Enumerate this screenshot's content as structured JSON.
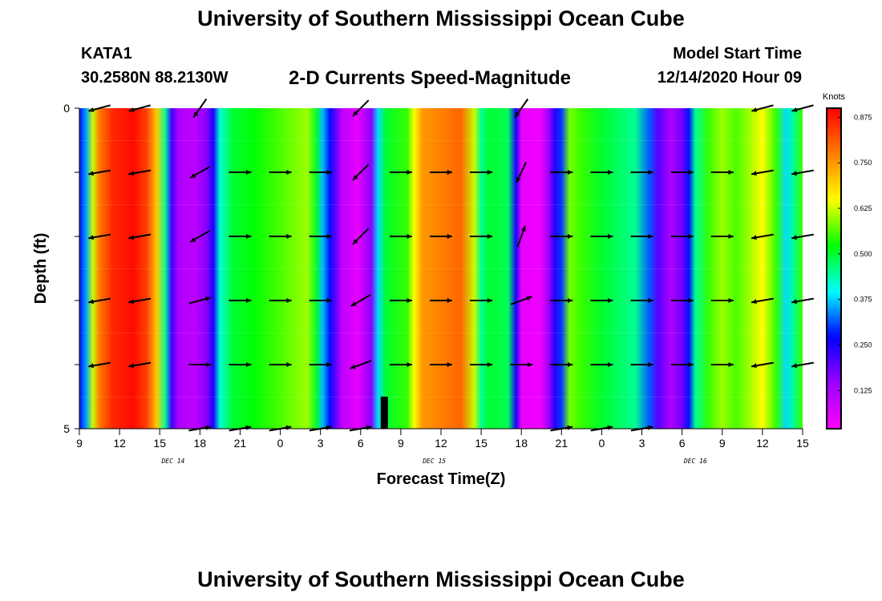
{
  "page": {
    "title": "University of Southern Mississippi Ocean Cube",
    "footer_title": "University of Southern Mississippi Ocean Cube",
    "station": "KATA1",
    "coords": "30.2580N 88.2130W",
    "chart_title": "2-D Currents Speed-Magnitude",
    "start_label": "Model Start Time",
    "start_value": "12/14/2020 Hour 09"
  },
  "chart_data": {
    "type": "heatmap",
    "title": "2-D Currents Speed-Magnitude",
    "xlabel": "Forecast Time(Z)",
    "ylabel": "Depth (ft)",
    "x_ticks": [
      "9",
      "12",
      "15",
      "18",
      "21",
      "0",
      "3",
      "6",
      "9",
      "12",
      "15",
      "18",
      "21",
      "0",
      "3",
      "6",
      "9",
      "12",
      "15"
    ],
    "x_hours": [
      0,
      3,
      6,
      9,
      12,
      15,
      18,
      21,
      24,
      27,
      30,
      33,
      36,
      39,
      42,
      45,
      48,
      51,
      54
    ],
    "day_labels": [
      {
        "hour": 7,
        "label": "DEC 14"
      },
      {
        "hour": 26.5,
        "label": "DEC 15"
      },
      {
        "hour": 46,
        "label": "DEC 16"
      }
    ],
    "y_ticks": [
      "0",
      "5"
    ],
    "ylim": [
      0,
      5
    ],
    "colorbar": {
      "unit": "Knots",
      "ticks": [
        "0.875",
        "0.750",
        "0.625",
        "0.500",
        "0.375",
        "0.250",
        "0.125"
      ],
      "tick_values": [
        0.875,
        0.75,
        0.625,
        0.5,
        0.375,
        0.25,
        0.125
      ],
      "range": [
        0.02,
        0.9
      ],
      "colors": [
        "#ff00ff",
        "#9900ff",
        "#0000ff",
        "#00ffff",
        "#00ff00",
        "#ffff00",
        "#ff7f00",
        "#ff0000"
      ]
    },
    "speed_by_hour": [
      {
        "hour": 0,
        "speed": 0.28
      },
      {
        "hour": 0.5,
        "speed": 0.35
      },
      {
        "hour": 1,
        "speed": 0.62
      },
      {
        "hour": 1.5,
        "speed": 0.78
      },
      {
        "hour": 2.5,
        "speed": 0.86
      },
      {
        "hour": 4,
        "speed": 0.89
      },
      {
        "hour": 5,
        "speed": 0.84
      },
      {
        "hour": 5.8,
        "speed": 0.7
      },
      {
        "hour": 6.4,
        "speed": 0.45
      },
      {
        "hour": 6.9,
        "speed": 0.22
      },
      {
        "hour": 7.4,
        "speed": 0.12
      },
      {
        "hour": 8.6,
        "speed": 0.1
      },
      {
        "hour": 9.5,
        "speed": 0.16
      },
      {
        "hour": 10,
        "speed": 0.25
      },
      {
        "hour": 10.5,
        "speed": 0.42
      },
      {
        "hour": 11.5,
        "speed": 0.5
      },
      {
        "hour": 13,
        "speed": 0.52
      },
      {
        "hour": 14.5,
        "speed": 0.55
      },
      {
        "hour": 16,
        "speed": 0.58
      },
      {
        "hour": 17,
        "speed": 0.6
      },
      {
        "hour": 17.7,
        "speed": 0.5
      },
      {
        "hour": 18.2,
        "speed": 0.36
      },
      {
        "hour": 18.7,
        "speed": 0.28
      },
      {
        "hour": 19.1,
        "speed": 0.2
      },
      {
        "hour": 19.6,
        "speed": 0.1
      },
      {
        "hour": 20.8,
        "speed": 0.05
      },
      {
        "hour": 21.8,
        "speed": 0.16
      },
      {
        "hour": 22.3,
        "speed": 0.38
      },
      {
        "hour": 22.9,
        "speed": 0.5
      },
      {
        "hour": 24.5,
        "speed": 0.55
      },
      {
        "hour": 25,
        "speed": 0.65
      },
      {
        "hour": 25.6,
        "speed": 0.75
      },
      {
        "hour": 28.5,
        "speed": 0.8
      },
      {
        "hour": 29.5,
        "speed": 0.62
      },
      {
        "hour": 30,
        "speed": 0.45
      },
      {
        "hour": 30.6,
        "speed": 0.5
      },
      {
        "hour": 32,
        "speed": 0.48
      },
      {
        "hour": 32.6,
        "speed": 0.25
      },
      {
        "hour": 33,
        "speed": 0.05
      },
      {
        "hour": 34.4,
        "speed": 0.04
      },
      {
        "hour": 35,
        "speed": 0.13
      },
      {
        "hour": 35.5,
        "speed": 0.24
      },
      {
        "hour": 36,
        "speed": 0.3
      },
      {
        "hour": 36.6,
        "speed": 0.58
      },
      {
        "hour": 37.5,
        "speed": 0.55
      },
      {
        "hour": 39,
        "speed": 0.5
      },
      {
        "hour": 41.5,
        "speed": 0.45
      },
      {
        "hour": 42.5,
        "speed": 0.32
      },
      {
        "hour": 43.2,
        "speed": 0.2
      },
      {
        "hour": 44.2,
        "speed": 0.12
      },
      {
        "hour": 45,
        "speed": 0.18
      },
      {
        "hour": 45.5,
        "speed": 0.28
      },
      {
        "hour": 46,
        "speed": 0.45
      },
      {
        "hour": 47,
        "speed": 0.55
      },
      {
        "hour": 48,
        "speed": 0.6
      },
      {
        "hour": 49,
        "speed": 0.56
      },
      {
        "hour": 50,
        "speed": 0.6
      },
      {
        "hour": 51,
        "speed": 0.65
      },
      {
        "hour": 52,
        "speed": 0.55
      },
      {
        "hour": 52.8,
        "speed": 0.38
      },
      {
        "hour": 53.3,
        "speed": 0.45
      },
      {
        "hour": 54,
        "speed": 0.55
      }
    ],
    "arrow_hours": [
      1.5,
      4.5,
      9,
      12,
      15,
      18,
      21,
      24,
      27,
      30,
      33,
      36,
      39,
      42,
      45,
      48,
      51,
      54
    ],
    "arrow_depths": [
      0,
      1,
      2,
      3,
      4,
      5
    ],
    "arrow_angles_by_depth": [
      [
        195,
        195,
        235,
        null,
        null,
        null,
        225,
        null,
        null,
        null,
        235,
        null,
        null,
        null,
        null,
        null,
        195,
        195
      ],
      [
        190,
        190,
        210,
        0,
        0,
        0,
        225,
        0,
        0,
        0,
        245,
        0,
        0,
        0,
        0,
        0,
        190,
        190
      ],
      [
        190,
        190,
        210,
        0,
        0,
        0,
        225,
        0,
        0,
        0,
        70,
        0,
        0,
        0,
        0,
        0,
        190,
        190
      ],
      [
        190,
        190,
        15,
        0,
        0,
        0,
        210,
        0,
        0,
        0,
        20,
        0,
        0,
        0,
        0,
        0,
        190,
        190
      ],
      [
        190,
        190,
        0,
        0,
        0,
        0,
        200,
        0,
        0,
        0,
        0,
        0,
        0,
        0,
        0,
        0,
        190,
        190
      ],
      [
        null,
        null,
        10,
        10,
        10,
        10,
        10,
        null,
        null,
        null,
        null,
        10,
        10,
        10,
        null,
        null,
        null,
        null
      ]
    ],
    "bottom_marker_hour": 22.8
  }
}
